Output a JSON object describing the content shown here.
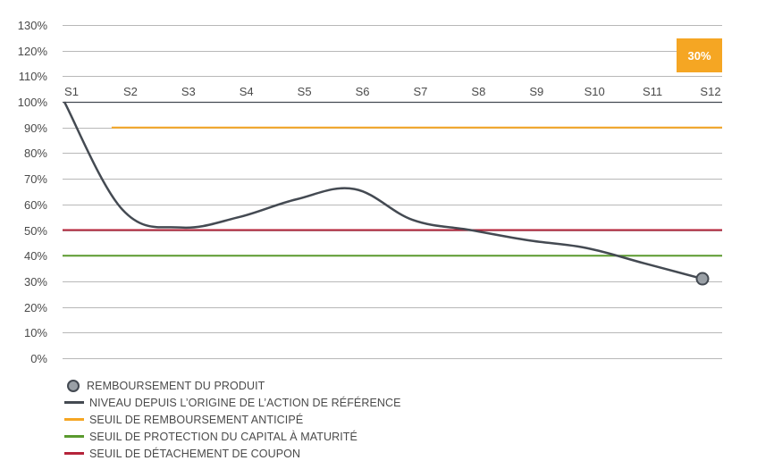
{
  "chart_data": {
    "type": "line",
    "categories": [
      "S1",
      "S2",
      "S3",
      "S4",
      "S5",
      "S6",
      "S7",
      "S8",
      "S9",
      "S10",
      "S11",
      "S12"
    ],
    "yticks": [
      "0%",
      "10%",
      "20%",
      "30%",
      "40%",
      "50%",
      "60%",
      "70%",
      "80%",
      "90%",
      "100%",
      "110%",
      "120%",
      "130%"
    ],
    "ylim": [
      0,
      130
    ],
    "grid": true,
    "legend_position": "bottom-left",
    "series": [
      {
        "name": "NIVEAU DEPUIS L’ORIGINE DE L’ACTION DE RÉFÉRENCE",
        "color": "#444a52",
        "values": [
          100,
          58,
          51,
          55,
          62,
          66,
          54,
          50,
          46,
          43,
          37,
          31
        ]
      }
    ],
    "thresholds": [
      {
        "name": "SEUIL DE REMBOURSEMENT ANTICIPÉ",
        "color": "#f5a623",
        "value": 90,
        "from": "S2"
      },
      {
        "name": "SEUIL DE PROTECTION DU CAPITAL À MATURITÉ",
        "color": "#5a9a2e",
        "value": 40,
        "from": "S1"
      },
      {
        "name": "SEUIL DE DÉTACHEMENT DE COUPON",
        "color": "#b5243a",
        "value": 50,
        "from": "S1"
      }
    ],
    "marker": {
      "name": "REMBOURSEMENT DU PRODUIT",
      "category": "S12",
      "value": 31
    },
    "badge": {
      "text": "30%",
      "color": "#f5a623"
    }
  }
}
